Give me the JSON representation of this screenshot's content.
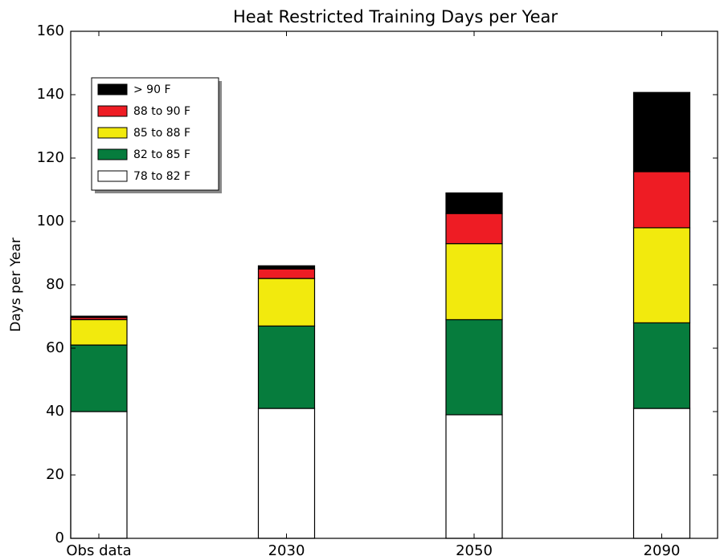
{
  "chart_data": {
    "type": "stacked_bar",
    "title": "Heat Restricted Training Days per Year",
    "y_label": "Days per Year",
    "categories": [
      "Obs data",
      "2030",
      "2050",
      "2090"
    ],
    "series": [
      {
        "name": "78 to 82 F",
        "color": "#ffffff",
        "values": [
          40,
          41,
          39,
          41
        ]
      },
      {
        "name": "82 to 85 F",
        "color": "#067c3d",
        "values": [
          21,
          26,
          30,
          27
        ]
      },
      {
        "name": "85 to 88 F",
        "color": "#f2ea0d",
        "values": [
          8,
          15,
          24,
          30
        ]
      },
      {
        "name": "88 to 90 F",
        "color": "#ee1c24",
        "values": [
          0.7,
          3,
          9.5,
          17.7
        ]
      },
      {
        "name": "> 90 F",
        "color": "#000000",
        "values": [
          0.4,
          1,
          6.5,
          25
        ]
      }
    ],
    "ylim": [
      0,
      160
    ],
    "yticks": [
      0,
      20,
      40,
      60,
      80,
      100,
      120,
      140,
      160
    ],
    "legend": "upper left"
  }
}
